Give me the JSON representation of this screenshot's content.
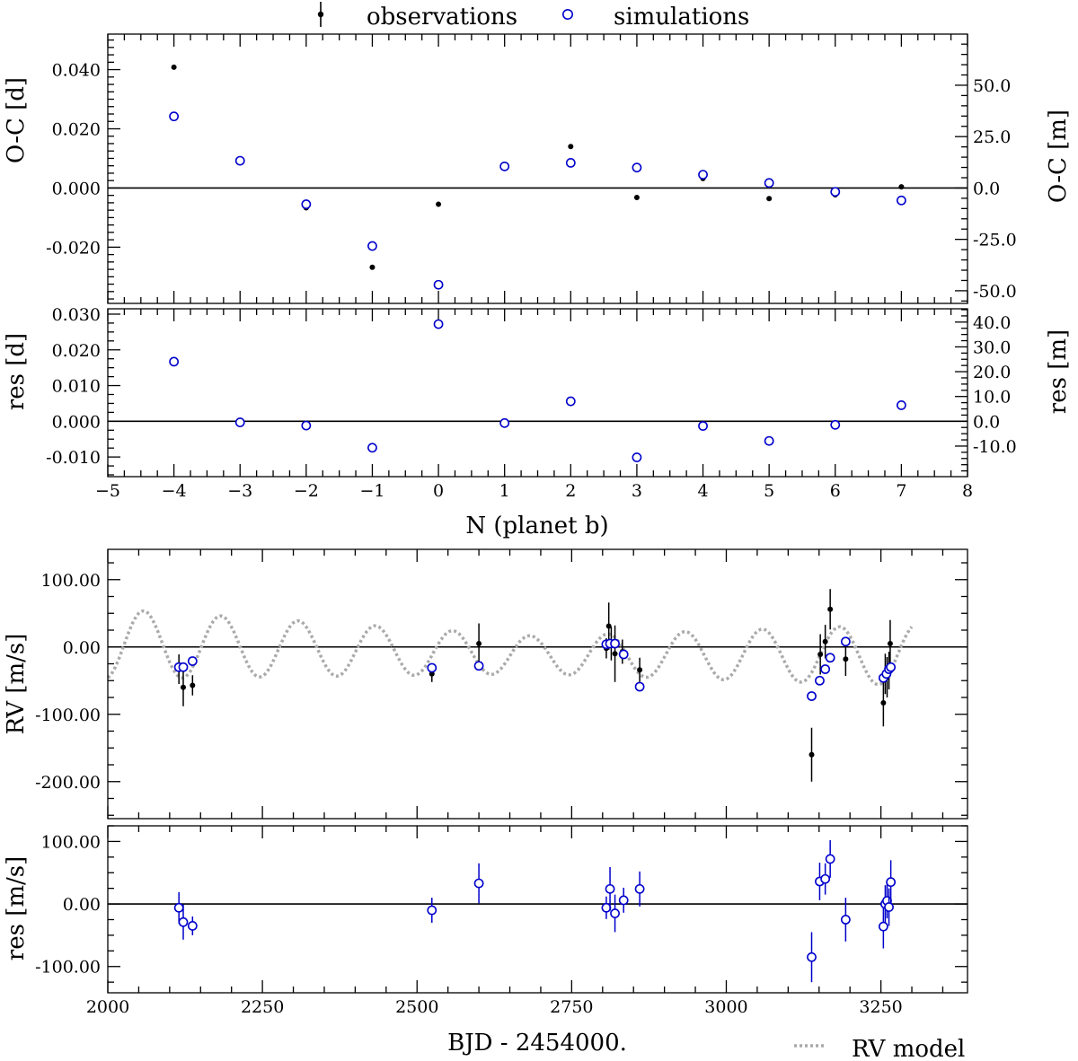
{
  "legend": {
    "observations": "observations",
    "simulations": "simulations",
    "rv_model": "RV model"
  },
  "colors": {
    "observations": "#000000",
    "simulations": "#0000cc",
    "rv_model": "#aaaaaa"
  },
  "chart_data": [
    {
      "type": "scatter",
      "panel": "oc",
      "xlabel": "",
      "ylabel": "O-C [d]",
      "ylabel_right": "O-C [m]",
      "xlim": [
        -5,
        8
      ],
      "ylim": [
        -0.039,
        0.052
      ],
      "right_axis_scale_minutes_per_day": 1440,
      "yticks": [
        -0.02,
        0.0,
        0.02,
        0.04
      ],
      "yticklabels": [
        "-0.020",
        "0.000",
        "0.020",
        "0.040"
      ],
      "yticks_right": [
        -50,
        -25,
        0,
        25,
        50
      ],
      "yticklabels_right": [
        "-50.0",
        "-25.0",
        "0.0",
        "25.0",
        "50.0"
      ],
      "series": [
        {
          "name": "observations",
          "x": [
            -4,
            -3,
            -2,
            -1,
            0,
            1,
            2,
            3,
            4,
            5,
            6,
            7
          ],
          "y": [
            0.0408,
            0.0088,
            -0.0067,
            -0.0268,
            -0.0055,
            0.0068,
            0.014,
            -0.0032,
            0.0032,
            -0.0036,
            -0.0023,
            0.0004
          ]
        },
        {
          "name": "simulations",
          "x": [
            -4,
            -3,
            -2,
            -1,
            0,
            1,
            2,
            3,
            4,
            5,
            6,
            7
          ],
          "y": [
            0.0242,
            0.0092,
            -0.0055,
            -0.0196,
            -0.0327,
            0.0073,
            0.0085,
            0.0069,
            0.0045,
            0.0017,
            -0.0013,
            -0.0042
          ]
        }
      ]
    },
    {
      "type": "scatter",
      "panel": "oc_res",
      "xlabel": "N (planet b)",
      "ylabel": "res [d]",
      "ylabel_right": "res [m]",
      "xlim": [
        -5,
        8
      ],
      "ylim": [
        -0.0155,
        0.0315
      ],
      "right_axis_scale_minutes_per_day": 1440,
      "xticks": [
        -5,
        -4,
        -3,
        -2,
        -1,
        0,
        1,
        2,
        3,
        4,
        5,
        6,
        7,
        8
      ],
      "xticklabels": [
        "−5",
        "−4",
        "−3",
        "−2",
        "−1",
        "0",
        "1",
        "2",
        "3",
        "4",
        "5",
        "6",
        "7",
        "8"
      ],
      "yticks": [
        -0.01,
        0.0,
        0.01,
        0.02,
        0.03
      ],
      "yticklabels": [
        "-0.010",
        "0.000",
        "0.010",
        "0.020",
        "0.030"
      ],
      "yticks_right": [
        -10,
        0,
        10,
        20,
        30,
        40
      ],
      "yticklabels_right": [
        "-10.0",
        "0.0",
        "10.0",
        "20.0",
        "30.0",
        "40.0"
      ],
      "series": [
        {
          "name": "simulations",
          "x": [
            -4,
            -3,
            -2,
            -1,
            0,
            1,
            2,
            3,
            4,
            5,
            6,
            7
          ],
          "y": [
            0.0167,
            -0.0003,
            -0.0012,
            -0.0074,
            0.0272,
            -0.0005,
            0.0056,
            -0.0101,
            -0.0013,
            -0.0055,
            -0.001,
            0.0045
          ]
        }
      ]
    },
    {
      "type": "scatter",
      "panel": "rv",
      "xlabel": "",
      "ylabel": "RV [m/s]",
      "xlim": [
        2000,
        3390
      ],
      "ylim": [
        -255,
        145
      ],
      "yticks": [
        -200,
        -100,
        0,
        100
      ],
      "yticklabels": [
        "-200.00",
        "-100.00",
        "0.00",
        "100.00"
      ],
      "model": {
        "name": "RV model",
        "amplitude_start": 52,
        "amplitude_min": 28,
        "amplitude_end": 48,
        "offset_start": 5,
        "offset_mid": -12,
        "period_days": 125,
        "phase_peak_day": 2058
      },
      "series": [
        {
          "name": "observations",
          "x": [
            2115,
            2122,
            2137,
            2524,
            2600,
            2806,
            2810,
            2814,
            2820,
            2832,
            2860,
            3138,
            3152,
            3160,
            3168,
            3193,
            3254,
            3257,
            3260,
            3263,
            3265
          ],
          "y": [
            -33,
            -60,
            -57,
            -40,
            5,
            -2,
            31,
            5,
            -10,
            -7,
            -34,
            -160,
            -11,
            8,
            56,
            -18,
            -83,
            -40,
            -45,
            -35,
            5
          ],
          "err": [
            22,
            28,
            15,
            12,
            30,
            15,
            35,
            25,
            42,
            18,
            18,
            40,
            30,
            25,
            30,
            25,
            35,
            30,
            30,
            28,
            35
          ]
        },
        {
          "name": "simulations",
          "x": [
            2115,
            2122,
            2137,
            2524,
            2600,
            2806,
            2812,
            2820,
            2834,
            2860,
            3138,
            3151,
            3160,
            3168,
            3193,
            3254,
            3259,
            3263,
            3266
          ],
          "y": [
            -30,
            -30,
            -21,
            -31,
            -28,
            4,
            5,
            5,
            -11,
            -59,
            -73,
            -50,
            -33,
            -16,
            8,
            -46,
            -40,
            -33,
            -30
          ]
        }
      ]
    },
    {
      "type": "scatter",
      "panel": "rv_res",
      "xlabel": "BJD - 2454000.",
      "ylabel": "res [m/s]",
      "xlim": [
        2000,
        3390
      ],
      "ylim": [
        -142,
        125
      ],
      "xticks": [
        2000,
        2250,
        2500,
        2750,
        3000,
        3250
      ],
      "xticklabels": [
        "2000",
        "2250",
        "2500",
        "2750",
        "3000",
        "3250"
      ],
      "yticks": [
        -100,
        0,
        100
      ],
      "yticklabels": [
        "-100.00",
        "0.00",
        "100.00"
      ],
      "series": [
        {
          "name": "simulations",
          "x": [
            2115,
            2122,
            2137,
            2524,
            2600,
            2806,
            2812,
            2820,
            2834,
            2860,
            3138,
            3151,
            3160,
            3168,
            3193,
            3254,
            3257,
            3260,
            3263,
            3266
          ],
          "y": [
            -6,
            -29,
            -35,
            -10,
            33,
            -6,
            24,
            -15,
            6,
            24,
            -85,
            36,
            40,
            72,
            -25,
            -36,
            0,
            5,
            -5,
            35
          ],
          "err": [
            25,
            28,
            15,
            20,
            32,
            18,
            35,
            30,
            20,
            28,
            40,
            30,
            25,
            30,
            35,
            35,
            30,
            28,
            30,
            35
          ]
        }
      ]
    }
  ]
}
